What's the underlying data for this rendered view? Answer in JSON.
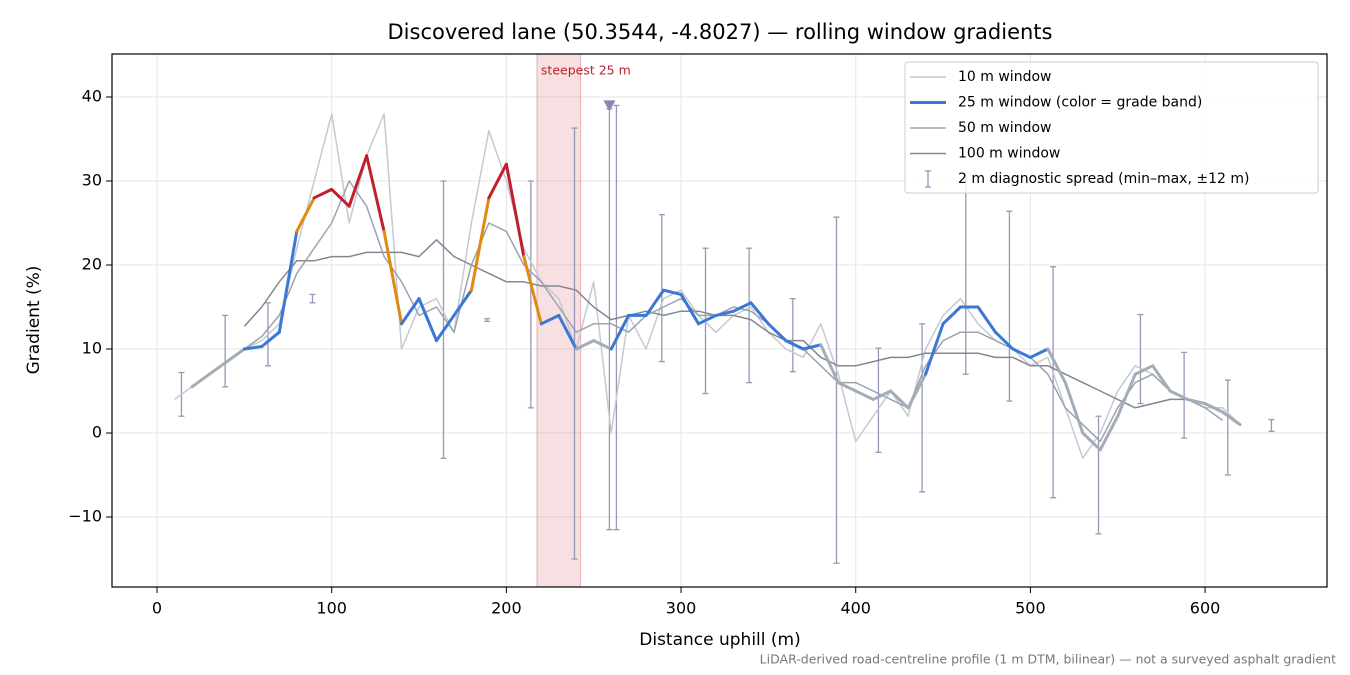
{
  "chart_data": {
    "type": "line",
    "title": "Discovered lane (50.3544, -4.8027) — rolling window gradients",
    "xlabel": "Distance uphill (m)",
    "ylabel": "Gradient (%)",
    "note": "LiDAR-derived road-centreline profile (1 m DTM, bilinear) — not a surveyed asphalt gradient",
    "xlim": [
      -25.77,
      669.8
    ],
    "ylim": [
      -18.33,
      45.12
    ],
    "xticks": [
      0,
      100,
      200,
      300,
      400,
      500,
      600
    ],
    "yticks": [
      {
        "value": -10,
        "label": "−10"
      },
      0,
      10,
      20,
      30,
      40
    ],
    "grid": true,
    "legend": "upper right",
    "x": [
      0,
      10,
      20,
      30,
      40,
      50,
      60,
      70,
      80,
      90,
      100,
      110,
      120,
      130,
      140,
      150,
      160,
      170,
      180,
      190,
      200,
      210,
      220,
      230,
      240,
      250,
      260,
      270,
      280,
      290,
      300,
      310,
      320,
      330,
      340,
      350,
      360,
      370,
      380,
      390,
      400,
      410,
      420,
      430,
      440,
      450,
      460,
      470,
      480,
      490,
      500,
      510,
      520,
      530,
      540,
      550,
      560,
      570,
      580,
      590,
      600,
      610,
      620,
      630
    ],
    "series": [
      {
        "name": "10 m window",
        "color": "#c3cad3",
        "width": 1.5,
        "values": [
          null,
          4,
          5.5,
          7,
          8.5,
          10,
          11,
          13,
          22,
          30,
          38,
          25,
          33,
          38,
          10,
          15,
          16,
          12,
          25,
          36,
          30,
          22,
          18,
          16,
          10,
          18,
          0,
          14,
          10,
          16,
          17,
          14,
          12,
          14,
          15,
          12,
          10,
          9,
          13,
          7,
          -1,
          2,
          5,
          2,
          10,
          14,
          16,
          13,
          11,
          10,
          8,
          9,
          3,
          -3,
          0,
          5,
          8,
          7,
          5,
          4,
          3,
          3,
          1,
          null
        ]
      },
      {
        "name": "25 m window (color = grade band)",
        "color": "#3a78d4",
        "width": 3,
        "values": [
          null,
          null,
          5.5,
          7,
          8.5,
          10,
          10.3,
          12,
          24,
          28,
          29,
          27,
          33,
          24,
          13,
          16,
          11,
          14,
          17,
          28,
          32,
          21,
          13,
          14,
          10,
          11,
          10,
          14,
          14,
          17,
          16.5,
          13,
          14,
          14.5,
          15.5,
          13,
          11,
          10,
          10.5,
          6,
          5,
          4,
          5,
          3,
          7,
          13,
          15,
          15,
          12,
          10,
          9,
          10,
          6,
          0,
          -2,
          2,
          7,
          8,
          5,
          4,
          3.5,
          2.5,
          1,
          null
        ],
        "segment_colors": [
          "#a3adb8",
          "#a3adb8",
          "#a3adb8",
          "#a3adb8",
          "#a3adb8",
          "#3a78d4",
          "#3a78d4",
          "#3a78d4",
          "#e08a12",
          "#c0202c",
          "#c0202c",
          "#c0202c",
          "#c0202c",
          "#e08a12",
          "#3a78d4",
          "#3a78d4",
          "#3a78d4",
          "#3a78d4",
          "#e08a12",
          "#c0202c",
          "#c0202c",
          "#e08a12",
          "#3a78d4",
          "#3a78d4",
          "#a3adb8",
          "#a3adb8",
          "#3a78d4",
          "#3a78d4",
          "#3a78d4",
          "#3a78d4",
          "#3a78d4",
          "#3a78d4",
          "#3a78d4",
          "#3a78d4",
          "#3a78d4",
          "#3a78d4",
          "#3a78d4",
          "#3a78d4",
          "#a3adb8",
          "#a3adb8",
          "#a3adb8",
          "#a3adb8",
          "#a3adb8",
          "#a3adb8",
          "#3a78d4",
          "#3a78d4",
          "#3a78d4",
          "#3a78d4",
          "#3a78d4",
          "#3a78d4",
          "#3a78d4",
          "#a3adb8",
          "#a3adb8",
          "#a3adb8",
          "#a3adb8",
          "#a3adb8",
          "#a3adb8",
          "#a3adb8",
          "#a3adb8",
          "#a3adb8",
          "#a3adb8",
          "#a3adb8",
          "#a3adb8",
          "#a3adb8"
        ]
      },
      {
        "name": "50 m window",
        "color": "#9aa3ae",
        "width": 1.5,
        "values": [
          null,
          null,
          5.5,
          7,
          8.5,
          10,
          11.5,
          14,
          19,
          22,
          25,
          30,
          27,
          21,
          18,
          14,
          15,
          12,
          20,
          25,
          24,
          20,
          18,
          15,
          12,
          13,
          13,
          12,
          14,
          15,
          16,
          14,
          14,
          15,
          14.5,
          13,
          11,
          10,
          8,
          6,
          6,
          5,
          4,
          3,
          8,
          11,
          12,
          12,
          11,
          10,
          9,
          7,
          3,
          1,
          -1,
          3,
          6,
          7,
          5,
          4,
          3,
          1.5,
          null,
          null
        ]
      },
      {
        "name": "100 m window",
        "color": "#808893",
        "width": 1.5,
        "values": [
          null,
          null,
          null,
          null,
          null,
          12.7,
          15,
          18,
          20.5,
          20.5,
          21,
          21,
          21.5,
          21.5,
          21.5,
          21,
          23,
          21,
          20,
          19,
          18,
          18,
          17.5,
          17.5,
          17,
          15,
          13.5,
          14,
          14.5,
          14,
          14.5,
          14.5,
          14,
          14,
          13.5,
          12,
          11,
          11,
          9,
          8,
          8,
          8.5,
          9,
          9,
          9.5,
          9.5,
          9.5,
          9.5,
          9,
          9,
          8,
          8,
          7,
          6,
          5,
          4,
          3,
          3.5,
          4,
          4,
          3.5,
          null,
          null,
          null
        ]
      }
    ],
    "errorbars": {
      "name": "2 m diagnostic spread (min–max, ±12 m)",
      "color": "#9a96b8",
      "x": [
        14,
        39,
        63.5,
        89,
        164,
        189,
        214,
        239,
        259,
        263,
        289,
        314,
        339,
        364,
        389,
        413,
        438,
        463,
        488,
        513,
        539,
        563,
        588,
        613,
        638
      ],
      "low": [
        2,
        5.5,
        8,
        15.5,
        -3,
        13.3,
        3,
        -15,
        -11.5,
        -11.5,
        8.5,
        4.7,
        6,
        7.3,
        -15.5,
        -2.3,
        -7,
        7,
        3.8,
        -7.7,
        -12,
        3.5,
        -0.6,
        -5,
        0.2
      ],
      "high": [
        7.2,
        14,
        15.5,
        16.5,
        30,
        13.6,
        30,
        36.3,
        38.6,
        39,
        26,
        22,
        22,
        16,
        25.7,
        10.1,
        13,
        31,
        26.4,
        19.8,
        2,
        14.1,
        9.6,
        6.3,
        1.6
      ]
    },
    "highlight": {
      "label": "steepest 25 m",
      "x": [
        217.5,
        242.5
      ],
      "color": "#c0202c"
    },
    "marker": {
      "x": 259,
      "y": 39,
      "color": "#8a84b0"
    }
  }
}
